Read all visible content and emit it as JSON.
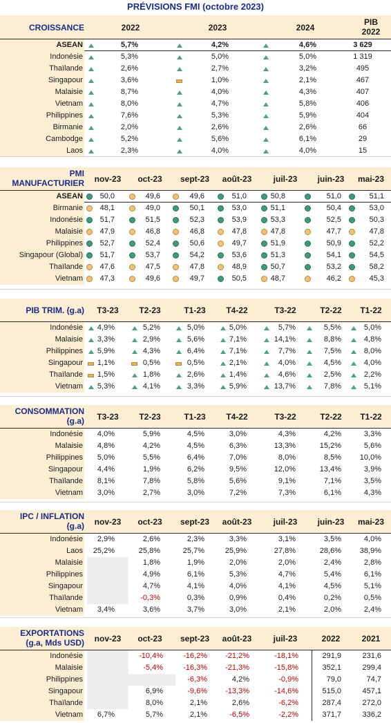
{
  "title": "PRÉVISIONS FMI (octobre 2023)",
  "croissance": {
    "label": "CROISSANCE",
    "columns": [
      "2022",
      "2023",
      "2024"
    ],
    "pib_label_1": "PIB",
    "pib_label_2": "2022",
    "rows": [
      {
        "name": "ASEAN",
        "v": [
          "5,7%",
          "4,2%",
          "4,6%"
        ],
        "i": [
          "up",
          "up",
          "up"
        ],
        "pib": "3 629"
      },
      {
        "name": "Indonésie",
        "v": [
          "5,3%",
          "5,0%",
          "5,0%"
        ],
        "i": [
          "up",
          "up",
          "up"
        ],
        "pib": "1 319"
      },
      {
        "name": "Thaïlande",
        "v": [
          "2,6%",
          "2,7%",
          "3,2%"
        ],
        "i": [
          "up",
          "up",
          "up"
        ],
        "pib": "495"
      },
      {
        "name": "Singapour",
        "v": [
          "3,6%",
          "1,0%",
          "2,1%"
        ],
        "i": [
          "up",
          "flat",
          "up"
        ],
        "pib": "467"
      },
      {
        "name": "Malaisie",
        "v": [
          "8,7%",
          "4,0%",
          "4,3%"
        ],
        "i": [
          "up",
          "up",
          "up"
        ],
        "pib": "407"
      },
      {
        "name": "Vietnam",
        "v": [
          "8,0%",
          "4,7%",
          "5,8%"
        ],
        "i": [
          "up",
          "up",
          "up"
        ],
        "pib": "406"
      },
      {
        "name": "Philippines",
        "v": [
          "7,6%",
          "5,3%",
          "5,9%"
        ],
        "i": [
          "up",
          "up",
          "up"
        ],
        "pib": "404"
      },
      {
        "name": "Birmanie",
        "v": [
          "2,0%",
          "2,6%",
          "2,6%"
        ],
        "i": [
          "up",
          "up",
          "up"
        ],
        "pib": "66"
      },
      {
        "name": "Cambodge",
        "v": [
          "5,2%",
          "5,6%",
          "6,1%"
        ],
        "i": [
          "up",
          "up",
          "up"
        ],
        "pib": "29"
      },
      {
        "name": "Laos",
        "v": [
          "2,3%",
          "4,0%",
          "4,0%"
        ],
        "i": [
          "up",
          "up",
          "up"
        ],
        "pib": "15"
      }
    ]
  },
  "pmi": {
    "label_1": "PMI",
    "label_2": "MANUFACTURIER",
    "columns": [
      "nov-23",
      "oct-23",
      "sept-23",
      "août-23",
      "juil-23",
      "juin-23",
      "mai-23"
    ],
    "rows": [
      {
        "name": "ASEAN",
        "v": [
          "50,0",
          "49,6",
          "49,6",
          "51,0",
          "50,8",
          "51,0",
          "51,1"
        ],
        "d": [
          "g",
          "o",
          "o",
          "g",
          "g",
          "g",
          "g"
        ]
      },
      {
        "name": "Birmanie",
        "v": [
          "48,1",
          "49,0",
          "50,1",
          "53,0",
          "51,1",
          "50,4",
          "53,0"
        ],
        "d": [
          "o",
          "o",
          "g",
          "g",
          "g",
          "g",
          "g"
        ]
      },
      {
        "name": "Indonésie",
        "v": [
          "51,7",
          "51,5",
          "52,3",
          "53,9",
          "53,3",
          "52,5",
          "50,3"
        ],
        "d": [
          "g",
          "g",
          "g",
          "g",
          "g",
          "g",
          "g"
        ]
      },
      {
        "name": "Malaisie",
        "v": [
          "47,9",
          "46,8",
          "46,8",
          "47,8",
          "47,8",
          "47,7",
          "47,8"
        ],
        "d": [
          "o",
          "o",
          "o",
          "o",
          "o",
          "o",
          "o"
        ]
      },
      {
        "name": "Philippines",
        "v": [
          "52,7",
          "52,4",
          "50,6",
          "49,7",
          "51,9",
          "50,9",
          "52,2"
        ],
        "d": [
          "g",
          "g",
          "g",
          "o",
          "g",
          "g",
          "g"
        ]
      },
      {
        "name": "Singapour (Global)",
        "v": [
          "51,7",
          "53,7",
          "54,2",
          "53,6",
          "51,3",
          "54,1",
          "54,5"
        ],
        "d": [
          "g",
          "g",
          "g",
          "g",
          "g",
          "g",
          "g"
        ]
      },
      {
        "name": "Thaïlande",
        "v": [
          "47,6",
          "47,5",
          "47,8",
          "48,9",
          "50,7",
          "53,2",
          "58,2"
        ],
        "d": [
          "o",
          "o",
          "o",
          "o",
          "g",
          "g",
          "g"
        ]
      },
      {
        "name": "Vietnam",
        "v": [
          "47,3",
          "49,6",
          "49,7",
          "50,5",
          "48,7",
          "46,2",
          "45,3"
        ],
        "d": [
          "o",
          "o",
          "o",
          "g",
          "o",
          "o",
          "o"
        ]
      }
    ]
  },
  "pib_trim": {
    "label": "PIB TRIM. (g.a)",
    "columns": [
      "T3-23",
      "T2-23",
      "T1-23",
      "T4-22",
      "T3-22",
      "T2-22",
      "T1-22"
    ],
    "rows": [
      {
        "name": "Indonésie",
        "v": [
          "4,9%",
          "5,2%",
          "5,0%",
          "5,0%",
          "5,7%",
          "5,5%",
          "5,0%"
        ],
        "i": [
          "up",
          "up",
          "up",
          "up",
          "up",
          "up",
          "up"
        ]
      },
      {
        "name": "Malaisie",
        "v": [
          "3,3%",
          "2,9%",
          "5,6%",
          "7,1%",
          "14,1%",
          "8,8%",
          "4,8%"
        ],
        "i": [
          "up",
          "up",
          "up",
          "up",
          "up",
          "up",
          "up"
        ]
      },
      {
        "name": "Philippines",
        "v": [
          "5,9%",
          "4,3%",
          "6,4%",
          "7,1%",
          "7,7%",
          "7,5%",
          "8,0%"
        ],
        "i": [
          "up",
          "up",
          "up",
          "up",
          "up",
          "up",
          "up"
        ]
      },
      {
        "name": "Singapour",
        "v": [
          "1,1%",
          "0,5%",
          "0,5%",
          "2,1%",
          "4,0%",
          "4,5%",
          "4,0%"
        ],
        "i": [
          "flat",
          "flat",
          "flat",
          "up",
          "up",
          "up",
          "up"
        ]
      },
      {
        "name": "Thaïlande",
        "v": [
          "1,5%",
          "1,8%",
          "2,6%",
          "1,4%",
          "4,6%",
          "2,5%",
          "2,2%"
        ],
        "i": [
          "flat",
          "up",
          "up",
          "up",
          "up",
          "up",
          "up"
        ]
      },
      {
        "name": "Vietnam",
        "v": [
          "5,3%",
          "4,1%",
          "3,3%",
          "5,9%",
          "13,7%",
          "7,8%",
          "5,1%"
        ],
        "i": [
          "up",
          "up",
          "up",
          "up",
          "up",
          "up",
          "up"
        ]
      }
    ]
  },
  "consommation": {
    "label_1": "CONSOMMATION",
    "label_2": "(g.a)",
    "columns": [
      "T3-23",
      "T2-23",
      "T1-23",
      "T4-22",
      "T3-22",
      "T2-22",
      "T1-22"
    ],
    "rows": [
      {
        "name": "Indonésie",
        "v": [
          "4,0%",
          "5,9%",
          "4,5%",
          "3,0%",
          "4,3%",
          "4,2%",
          "3,3%"
        ]
      },
      {
        "name": "Malaisie",
        "v": [
          "4,8%",
          "4,2%",
          "4,5%",
          "6,3%",
          "13,3%",
          "15,2%",
          "5,6%"
        ]
      },
      {
        "name": "Philippines",
        "v": [
          "5,0%",
          "5,5%",
          "6,4%",
          "7,0%",
          "8,0%",
          "8,5%",
          "10,0%"
        ]
      },
      {
        "name": "Singapour",
        "v": [
          "4,4%",
          "1,9%",
          "6,2%",
          "9,5%",
          "12,0%",
          "13,4%",
          "3,9%"
        ]
      },
      {
        "name": "Thaïlande",
        "v": [
          "8,1%",
          "7,8%",
          "5,8%",
          "5,6%",
          "9,1%",
          "7,1%",
          "3,5%"
        ]
      },
      {
        "name": "Vietnam",
        "v": [
          "3,0%",
          "2,7%",
          "3,0%",
          "7,2%",
          "7,3%",
          "6,1%",
          "4,3%"
        ]
      }
    ]
  },
  "ipc": {
    "label_1": "IPC / INFLATION",
    "label_2": "(g.a)",
    "columns": [
      "nov-23",
      "oct-23",
      "sept-23",
      "août-23",
      "juil-23",
      "juin-23",
      "mai-23"
    ],
    "rows": [
      {
        "name": "Indonésie",
        "v": [
          "2,9%",
          "2,6%",
          "2,3%",
          "3,3%",
          "3,1%",
          "3,5%",
          "4,0%"
        ]
      },
      {
        "name": "Laos",
        "v": [
          "25,2%",
          "25,8%",
          "25,7%",
          "25,9%",
          "27,8%",
          "28,6%",
          "38,9%"
        ]
      },
      {
        "name": "Malaisie",
        "v": [
          "",
          "1,8%",
          "1,9%",
          "2,0%",
          "2,0%",
          "2,4%",
          "2,8%"
        ]
      },
      {
        "name": "Philippines",
        "v": [
          "",
          "4,9%",
          "6,1%",
          "5,3%",
          "4,7%",
          "5,4%",
          "6,1%"
        ]
      },
      {
        "name": "Singapour",
        "v": [
          "",
          "4,7%",
          "4,1%",
          "4,0%",
          "4,1%",
          "4,5%",
          "5,1%"
        ]
      },
      {
        "name": "Thaïlande",
        "v": [
          "",
          "-0,3%",
          "0,3%",
          "0,9%",
          "0,4%",
          "0,2%",
          "0,5%"
        ]
      },
      {
        "name": "Vietnam",
        "v": [
          "3,4%",
          "3,6%",
          "3,7%",
          "3,0%",
          "2,1%",
          "2,0%",
          "2,4%"
        ]
      }
    ]
  },
  "exportations": {
    "label_1": "EXPORTATIONS",
    "label_2": "(g.a, Mds USD)",
    "columns": [
      "nov-23",
      "oct-23",
      "sept-23",
      "août-23",
      "juil-23",
      "2022",
      "2021"
    ],
    "rows": [
      {
        "name": "Indonésie",
        "v": [
          "",
          "-10,4%",
          "-16,2%",
          "-21,2%",
          "-18,1%",
          "291,9",
          "231,6"
        ]
      },
      {
        "name": "Malaisie",
        "v": [
          "",
          "-5,4%",
          "-16,3%",
          "-21,3%",
          "-15,8%",
          "352,1",
          "299,4"
        ]
      },
      {
        "name": "Philippines",
        "v": [
          "",
          "",
          "-6,3%",
          "4,2%",
          "-0,9%",
          "79,0",
          "74,7"
        ]
      },
      {
        "name": "Singapour",
        "v": [
          "",
          "6,9%",
          "-9,6%",
          "-13,3%",
          "-14,6%",
          "515,0",
          "457,1"
        ]
      },
      {
        "name": "Thaïlande",
        "v": [
          "",
          "8,0%",
          "2,1%",
          "2,6%",
          "-6,2%",
          "287,4",
          "272,0"
        ]
      },
      {
        "name": "Vietnam",
        "v": [
          "6,7%",
          "5,7%",
          "2,1%",
          "-6,5%",
          "-2,2%",
          "371,7",
          "336,2"
        ]
      }
    ]
  }
}
